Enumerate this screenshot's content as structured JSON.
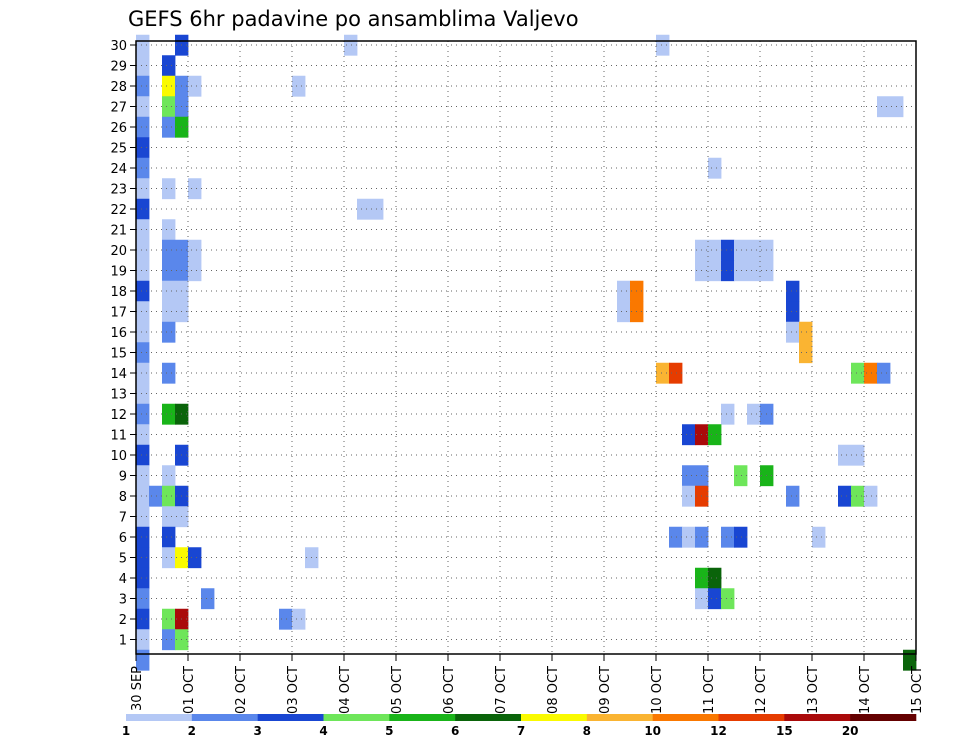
{
  "chart_data": {
    "type": "heatmap",
    "title": "GEFS 6hr padavine po ansamblima Valjevo",
    "xlabel": "",
    "ylabel": "",
    "grid": true,
    "x_tick_labels": [
      "30 SEP",
      "01 OCT",
      "02 OCT",
      "03 OCT",
      "04 OCT",
      "05 OCT",
      "06 OCT",
      "07 OCT",
      "08 OCT",
      "09 OCT",
      "10 OCT",
      "11 OCT",
      "12 OCT",
      "13 OCT",
      "14 OCT",
      "15 OCT"
    ],
    "x_range_days": [
      0,
      15
    ],
    "step_hours": 6,
    "members": [
      1,
      2,
      3,
      4,
      5,
      6,
      7,
      8,
      9,
      10,
      11,
      12,
      13,
      14,
      15,
      16,
      17,
      18,
      19,
      20,
      21,
      22,
      23,
      24,
      25,
      26,
      27,
      28,
      29,
      30
    ],
    "colorbar": {
      "tick_labels": [
        "1",
        "2",
        "3",
        "4",
        "5",
        "6",
        "7",
        "8",
        "10",
        "12",
        "15",
        "20"
      ],
      "colors": [
        "#b4c8f5",
        "#5a87eb",
        "#1946d2",
        "#6ee65a",
        "#19b419",
        "#0a640a",
        "#fafa00",
        "#fab432",
        "#fa7800",
        "#e63c00",
        "#aa0a0a",
        "#640000"
      ]
    },
    "cells": [
      {
        "m": 30,
        "s": [
          [
            0,
            1,
            0
          ],
          [
            3,
            1,
            2
          ],
          [
            16,
            1,
            0
          ],
          [
            40,
            1,
            0
          ]
        ]
      },
      {
        "m": 29,
        "s": [
          [
            0,
            1,
            0
          ],
          [
            2,
            1,
            2
          ]
        ]
      },
      {
        "m": 28,
        "s": [
          [
            0,
            1,
            1
          ],
          [
            2,
            1,
            6
          ],
          [
            3,
            1,
            1
          ],
          [
            4,
            1,
            0
          ],
          [
            12,
            1,
            0
          ]
        ]
      },
      {
        "m": 27,
        "s": [
          [
            0,
            1,
            0
          ],
          [
            2,
            1,
            3
          ],
          [
            3,
            1,
            1
          ],
          [
            57,
            2,
            0
          ]
        ]
      },
      {
        "m": 26,
        "s": [
          [
            0,
            1,
            1
          ],
          [
            2,
            1,
            1
          ],
          [
            3,
            1,
            4
          ]
        ]
      },
      {
        "m": 25,
        "s": [
          [
            0,
            1,
            2
          ]
        ]
      },
      {
        "m": 24,
        "s": [
          [
            0,
            1,
            1
          ],
          [
            44,
            1,
            0
          ]
        ]
      },
      {
        "m": 23,
        "s": [
          [
            0,
            1,
            0
          ],
          [
            2,
            1,
            0
          ],
          [
            4,
            1,
            0
          ]
        ]
      },
      {
        "m": 22,
        "s": [
          [
            0,
            1,
            2
          ],
          [
            17,
            2,
            0
          ]
        ]
      },
      {
        "m": 21,
        "s": [
          [
            0,
            1,
            0
          ],
          [
            2,
            1,
            0
          ]
        ]
      },
      {
        "m": 20,
        "s": [
          [
            0,
            1,
            0
          ],
          [
            2,
            2,
            1
          ],
          [
            4,
            1,
            0
          ],
          [
            43,
            2,
            0
          ],
          [
            45,
            1,
            2
          ],
          [
            46,
            3,
            0
          ]
        ]
      },
      {
        "m": 19,
        "s": [
          [
            0,
            1,
            0
          ],
          [
            2,
            2,
            1
          ],
          [
            4,
            1,
            0
          ],
          [
            43,
            2,
            0
          ],
          [
            45,
            1,
            2
          ],
          [
            46,
            3,
            0
          ]
        ]
      },
      {
        "m": 18,
        "s": [
          [
            0,
            1,
            2
          ],
          [
            2,
            2,
            0
          ],
          [
            37,
            1,
            0
          ],
          [
            38,
            1,
            8
          ],
          [
            50,
            1,
            2
          ]
        ]
      },
      {
        "m": 17,
        "s": [
          [
            0,
            1,
            0
          ],
          [
            2,
            2,
            0
          ],
          [
            37,
            1,
            0
          ],
          [
            38,
            1,
            8
          ],
          [
            50,
            1,
            2
          ]
        ]
      },
      {
        "m": 16,
        "s": [
          [
            0,
            1,
            0
          ],
          [
            2,
            1,
            1
          ],
          [
            50,
            1,
            0
          ],
          [
            51,
            1,
            7
          ]
        ]
      },
      {
        "m": 15,
        "s": [
          [
            0,
            1,
            1
          ],
          [
            51,
            1,
            7
          ]
        ]
      },
      {
        "m": 14,
        "s": [
          [
            0,
            1,
            0
          ],
          [
            2,
            1,
            1
          ],
          [
            40,
            1,
            7
          ],
          [
            41,
            1,
            9
          ],
          [
            55,
            1,
            3
          ],
          [
            56,
            1,
            8
          ],
          [
            57,
            1,
            1
          ]
        ]
      },
      {
        "m": 13,
        "s": [
          [
            0,
            1,
            0
          ]
        ]
      },
      {
        "m": 12,
        "s": [
          [
            0,
            1,
            1
          ],
          [
            2,
            1,
            4
          ],
          [
            3,
            1,
            5
          ],
          [
            45,
            1,
            0
          ],
          [
            47,
            1,
            0
          ],
          [
            48,
            1,
            1
          ]
        ]
      },
      {
        "m": 11,
        "s": [
          [
            0,
            1,
            0
          ],
          [
            42,
            1,
            2
          ],
          [
            43,
            1,
            10
          ],
          [
            44,
            1,
            4
          ]
        ]
      },
      {
        "m": 10,
        "s": [
          [
            0,
            1,
            2
          ],
          [
            3,
            1,
            2
          ],
          [
            54,
            2,
            0
          ]
        ]
      },
      {
        "m": 9,
        "s": [
          [
            0,
            1,
            0
          ],
          [
            2,
            1,
            0
          ],
          [
            42,
            2,
            1
          ],
          [
            46,
            1,
            3
          ],
          [
            48,
            1,
            4
          ]
        ]
      },
      {
        "m": 8,
        "s": [
          [
            0,
            1,
            0
          ],
          [
            1,
            1,
            1
          ],
          [
            2,
            1,
            3
          ],
          [
            3,
            1,
            2
          ],
          [
            42,
            1,
            0
          ],
          [
            43,
            1,
            9
          ],
          [
            50,
            1,
            1
          ],
          [
            54,
            1,
            2
          ],
          [
            55,
            1,
            3
          ],
          [
            56,
            1,
            0
          ]
        ]
      },
      {
        "m": 7,
        "s": [
          [
            0,
            1,
            0
          ],
          [
            2,
            2,
            0
          ]
        ]
      },
      {
        "m": 6,
        "s": [
          [
            0,
            1,
            2
          ],
          [
            2,
            1,
            2
          ],
          [
            41,
            1,
            1
          ],
          [
            42,
            1,
            0
          ],
          [
            43,
            1,
            1
          ],
          [
            45,
            1,
            1
          ],
          [
            46,
            1,
            2
          ],
          [
            52,
            1,
            0
          ]
        ]
      },
      {
        "m": 5,
        "s": [
          [
            0,
            1,
            2
          ],
          [
            2,
            1,
            0
          ],
          [
            3,
            1,
            6
          ],
          [
            4,
            1,
            2
          ],
          [
            13,
            1,
            0
          ]
        ]
      },
      {
        "m": 4,
        "s": [
          [
            0,
            1,
            2
          ],
          [
            43,
            1,
            4
          ],
          [
            44,
            1,
            5
          ]
        ]
      },
      {
        "m": 3,
        "s": [
          [
            0,
            1,
            1
          ],
          [
            5,
            1,
            1
          ],
          [
            43,
            1,
            0
          ],
          [
            44,
            1,
            2
          ],
          [
            45,
            1,
            3
          ]
        ]
      },
      {
        "m": 2,
        "s": [
          [
            0,
            1,
            2
          ],
          [
            2,
            1,
            3
          ],
          [
            3,
            1,
            10
          ],
          [
            11,
            1,
            1
          ],
          [
            12,
            1,
            0
          ]
        ]
      },
      {
        "m": 1,
        "s": [
          [
            0,
            1,
            0
          ],
          [
            2,
            1,
            1
          ],
          [
            3,
            1,
            3
          ]
        ]
      },
      {
        "m": 0,
        "s": [
          [
            0,
            1,
            1
          ],
          [
            59,
            1,
            5
          ]
        ]
      }
    ]
  }
}
